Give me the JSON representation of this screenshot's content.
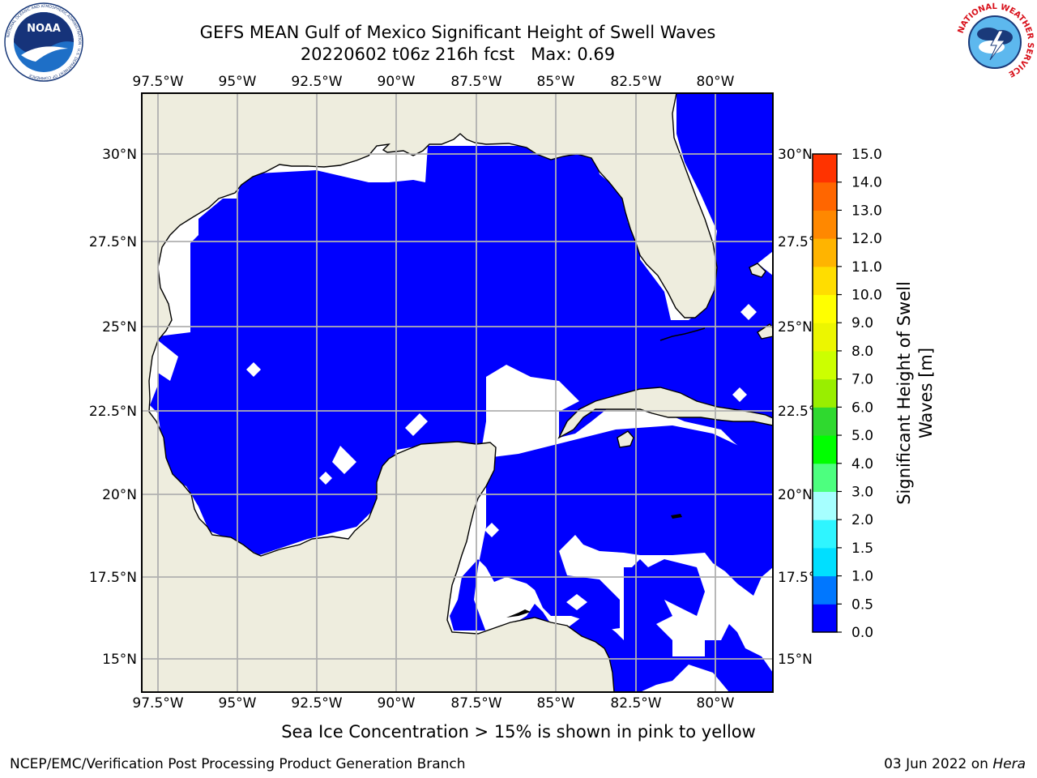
{
  "header": {
    "title_line1": "GEFS MEAN Gulf of Mexico Significant Height of Swell Waves",
    "title_line2": "20220602 t06z 216h fcst   Max: 0.69"
  },
  "logos": {
    "noaa_text": "NOAA",
    "noaa_ring_text": "NATIONAL OCEANIC AND ATMOSPHERIC ADMINISTRATION · U.S. DEPARTMENT OF COMMERCE",
    "nws_ring_text": "NATIONAL WEATHER SERVICE"
  },
  "map": {
    "lon_labels": [
      "97.5°W",
      "95°W",
      "92.5°W",
      "90°W",
      "87.5°W",
      "85°W",
      "82.5°W",
      "80°W"
    ],
    "lat_labels": [
      "30°N",
      "27.5°N",
      "25°N",
      "22.5°N",
      "20°N",
      "17.5°N",
      "15°N"
    ]
  },
  "colorbar": {
    "label_line1": "Significant Height of Swell",
    "label_line2": "Waves [m]",
    "ticks": [
      "0.0",
      "0.5",
      "1.0",
      "1.5",
      "2.0",
      "3.0",
      "4.0",
      "5.0",
      "6.0",
      "7.0",
      "8.0",
      "9.0",
      "10.0",
      "11.0",
      "12.0",
      "13.0",
      "14.0",
      "15.0"
    ],
    "colors": [
      "#0000ff",
      "#0077ff",
      "#00dfff",
      "#2ff5ff",
      "#a6ffff",
      "#4dff7f",
      "#00ff00",
      "#2fd92f",
      "#99ee00",
      "#ccff00",
      "#ecf600",
      "#ffff00",
      "#ffdd00",
      "#ffb400",
      "#ff8800",
      "#ff6600",
      "#ff3300",
      "#ff0000"
    ]
  },
  "footer": {
    "note": "Sea Ice Concentration > 15% is shown in pink to yellow",
    "left": "NCEP/EMC/Verification Post Processing Product Generation Branch",
    "date": "03 Jun 2022 on ",
    "host": "Hera"
  },
  "colors": {
    "land": "#eeedde",
    "wave_low": "#0000ff",
    "wave_mid": "#0080ff",
    "grid": "#b0b0b0"
  }
}
